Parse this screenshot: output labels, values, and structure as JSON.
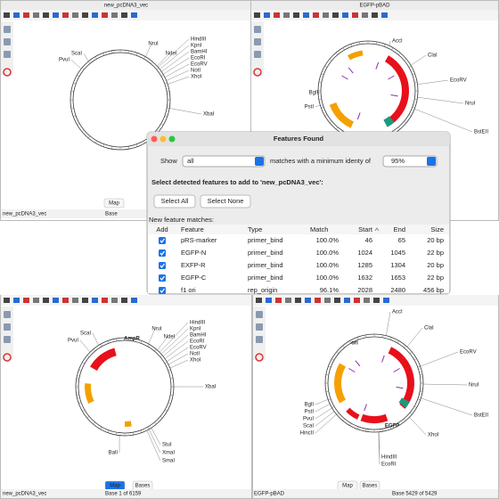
{
  "windows": [
    {
      "title": "new_pcDNA3_vec",
      "enzymes": [
        "ScaI",
        "PvuI",
        "NruI",
        "NdeI",
        "HindIII",
        "KpnI",
        "BamHI",
        "EcoRI",
        "EcoRV",
        "NotI",
        "XhoI",
        "XbaI"
      ],
      "tabs": [
        "Map"
      ],
      "status": "new_pcDNA3_vec",
      "position": "Base"
    },
    {
      "title": "EGFP-pBAD",
      "enzymes": [
        "AccI",
        "ClaI",
        "EcoRV",
        "NruI",
        "BstEII",
        "BglI",
        "PstI"
      ]
    },
    {
      "enzymes": [
        "ScaI",
        "PvuI",
        "NruI",
        "NdeI",
        "HindIII",
        "KpnI",
        "BamHI",
        "EcoRI",
        "EcoRV",
        "NotI",
        "XhoI",
        "XbaI",
        "BalI",
        "StuI",
        "XmaI",
        "SmaI"
      ],
      "features": [
        "AmpR"
      ],
      "tabs": [
        "Map",
        "Bases"
      ],
      "status": "new_pcDNA3_vec",
      "position": "Base 1 of 6159"
    },
    {
      "enzymes": [
        "AccI",
        "ClaI",
        "EcoRV",
        "NruI",
        "BstEII",
        "BglI",
        "PstI",
        "PvuI",
        "ScaI",
        "HincII",
        "HindIII",
        "EcoRI",
        "XhoI"
      ],
      "features": [
        "ori",
        "EGFP"
      ],
      "tabs": [
        "Map",
        "Bases"
      ],
      "status": "EGFP-pBAD",
      "position": "Base 5429 of 5429"
    }
  ],
  "dialog": {
    "title": "Features Found",
    "show_label": "Show",
    "show_value": "all",
    "identity_label": "matches with a minimum identy of",
    "identity_value": "95%",
    "prompt": "Select detected features to add to 'new_pcDNA3_vec':",
    "buttons": [
      "Select All",
      "Select None"
    ],
    "list_label": "New feature matches:",
    "columns": [
      "Add",
      "Feature",
      "Type",
      "Match",
      "Start",
      "End",
      "Size"
    ],
    "rows": [
      [
        "pRS-marker",
        "primer_bind",
        "100.0%",
        "46",
        "65",
        "20 bp"
      ],
      [
        "EGFP-N",
        "primer_bind",
        "100.0%",
        "1024",
        "1045",
        "22 bp"
      ],
      [
        "EXFP-R",
        "primer_bind",
        "100.0%",
        "1285",
        "1304",
        "20 bp"
      ],
      [
        "EGFP-C",
        "primer_bind",
        "100.0%",
        "1632",
        "1653",
        "22 bp"
      ],
      [
        "f1 ori",
        "rep_origin",
        "96.1%",
        "2028",
        "2480",
        "456 bp"
      ]
    ]
  }
}
